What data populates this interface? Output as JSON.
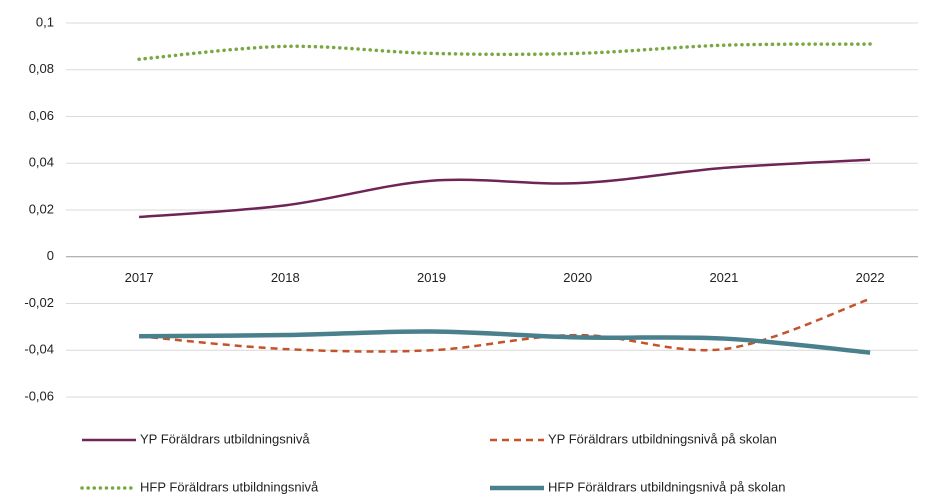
{
  "chart_data": {
    "type": "line",
    "categories": [
      "2017",
      "2018",
      "2019",
      "2020",
      "2021",
      "2022"
    ],
    "series": [
      {
        "name": "YP Föräldrars utbildningsnivå",
        "color": "#6e2456",
        "style": "solid",
        "values": [
          0.017,
          0.022,
          0.0325,
          0.0315,
          0.038,
          0.0415
        ]
      },
      {
        "name": "YP Föräldrars utbildningsnivå på skolan",
        "color": "#c4532a",
        "style": "dashed",
        "values": [
          -0.034,
          -0.0395,
          -0.04,
          -0.0335,
          -0.0395,
          -0.018
        ]
      },
      {
        "name": "HFP Föräldrars utbildningsnivå",
        "color": "#79a840",
        "style": "dotted",
        "values": [
          0.0845,
          0.09,
          0.087,
          0.087,
          0.0905,
          0.091
        ]
      },
      {
        "name": "HFP Föräldrars utbildningsnivå på skolan",
        "color": "#4a7f8c",
        "style": "thick",
        "values": [
          -0.034,
          -0.0335,
          -0.032,
          -0.0345,
          -0.035,
          -0.041
        ]
      }
    ],
    "ylim": [
      -0.06,
      0.1
    ],
    "yticks": [
      {
        "value": -0.06,
        "label": "-0,06"
      },
      {
        "value": -0.04,
        "label": "-0,04"
      },
      {
        "value": -0.02,
        "label": "-0,02"
      },
      0,
      {
        "value": 0.02,
        "label": "0,02"
      },
      {
        "value": 0.04,
        "label": "0,04"
      },
      {
        "value": 0.06,
        "label": "0,06"
      },
      {
        "value": 0.08,
        "label": "0,08"
      },
      {
        "value": 0.1,
        "label": "0,1"
      }
    ],
    "grid": true,
    "smooth": true,
    "legend": "bottom"
  }
}
